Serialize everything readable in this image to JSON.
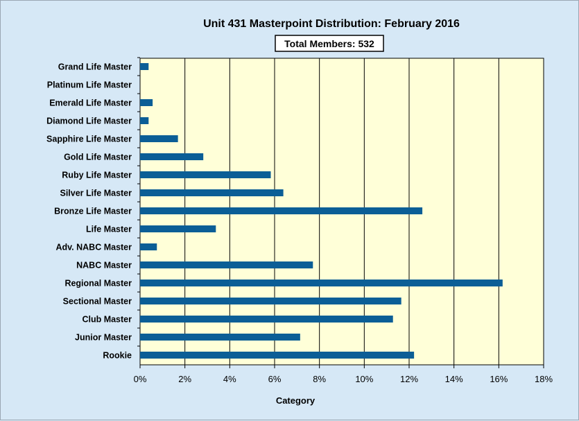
{
  "chart_data": {
    "type": "bar",
    "orientation": "horizontal",
    "title": "Unit 431 Masterpoint Distribution: February 2016",
    "annotation": "Total Members: 532",
    "xlabel": "Category",
    "ylabel": "",
    "xlim": [
      0,
      18
    ],
    "x_ticks": [
      "0%",
      "2%",
      "4%",
      "6%",
      "8%",
      "10%",
      "12%",
      "14%",
      "16%",
      "18%"
    ],
    "grid": "vertical",
    "categories": [
      "Grand Life Master",
      "Platinum Life Master",
      "Emerald Life Master",
      "Diamond Life Master",
      "Sapphire Life Master",
      "Gold Life Master",
      "Ruby Life Master",
      "Silver Life Master",
      "Bronze Life Master",
      "Life Master",
      "Adv. NABC Master",
      "NABC Master",
      "Regional Master",
      "Sectional Master",
      "Club Master",
      "Junior Master",
      "Rookie"
    ],
    "values": [
      0.38,
      0,
      0.56,
      0.38,
      1.69,
      2.82,
      5.83,
      6.39,
      12.59,
      3.38,
      0.75,
      7.71,
      16.17,
      11.65,
      11.28,
      7.14,
      12.22
    ],
    "colors": {
      "bar": "#0b5e96",
      "plot_bg": "#ffffd8",
      "page_bg": "#d6e8f6",
      "grid": "#000000"
    }
  }
}
